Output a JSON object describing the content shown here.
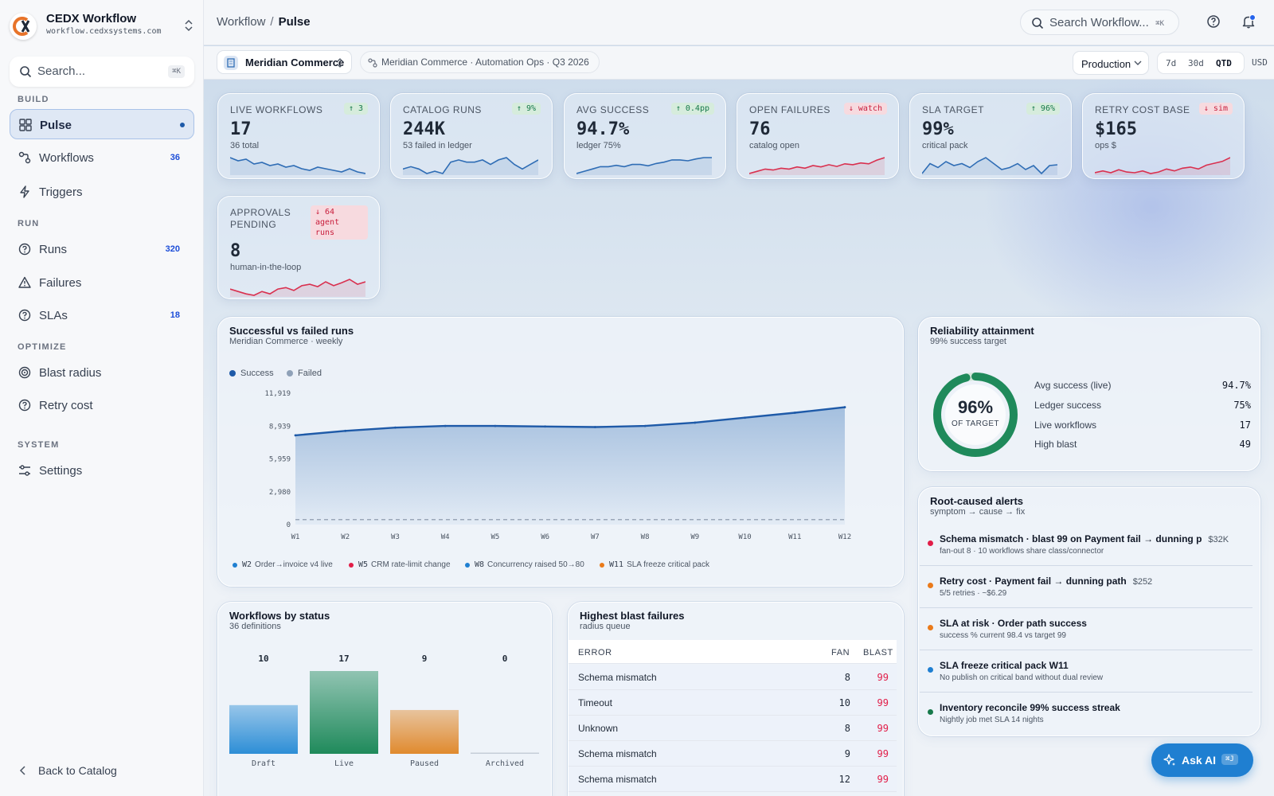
{
  "app": {
    "name": "CEDX Workflow",
    "domain": "workflow.cedxsystems.com"
  },
  "sidebar": {
    "search_placeholder": "Search...",
    "search_kbd": "⌘K",
    "sections": {
      "build": "BUILD",
      "run": "RUN",
      "optimize": "OPTIMIZE",
      "system": "SYSTEM"
    },
    "items": [
      {
        "label": "Pulse",
        "active": true
      },
      {
        "label": "Workflows",
        "count": "36"
      },
      {
        "label": "Triggers"
      },
      {
        "label": "Runs",
        "count": "320"
      },
      {
        "label": "Failures"
      },
      {
        "label": "SLAs",
        "count": "18"
      },
      {
        "label": "Blast radius"
      },
      {
        "label": "Retry cost"
      },
      {
        "label": "Settings"
      }
    ],
    "back": "Back to Catalog"
  },
  "header": {
    "breadcrumb": [
      "Workflow",
      "Pulse"
    ],
    "search_placeholder": "Search Workflow...",
    "search_kbd": "⌘K"
  },
  "context": {
    "tenant": "Meridian Commerce",
    "scope": "Meridian Commerce · Automation Ops · Q3 2026",
    "environment": "Production",
    "ranges": [
      "7d",
      "30d",
      "QTD"
    ],
    "active_range": "QTD",
    "currency": "USD"
  },
  "kpis": [
    {
      "title": "LIVE WORKFLOWS",
      "value": "17",
      "sub": "36 total",
      "badge": "↑ 3",
      "trend": "up",
      "color": "#2f6db5",
      "spark": [
        6,
        5,
        5.5,
        4,
        4.5,
        3.5,
        4,
        3,
        3.5,
        2.5,
        2,
        3,
        2.5,
        2,
        1.5,
        2.5,
        1.5,
        1
      ]
    },
    {
      "title": "CATALOG RUNS",
      "value": "244K",
      "sub": "53 failed in ledger",
      "badge": "↑ 9%",
      "trend": "up",
      "color": "#2f6db5",
      "spark": [
        2,
        2.5,
        2,
        1,
        1.5,
        1,
        3.5,
        4,
        3.5,
        3.5,
        4,
        3,
        4,
        4.5,
        3,
        2,
        3,
        4
      ]
    },
    {
      "title": "AVG SUCCESS",
      "value": "94.7%",
      "sub": "ledger 75%",
      "badge": "↑ 0.4pp",
      "trend": "up",
      "color": "#2f6db5",
      "spark": [
        1,
        1.5,
        2,
        2.5,
        2.5,
        2.8,
        2.5,
        3,
        3,
        2.7,
        3.2,
        3.5,
        4,
        4,
        3.8,
        4.2,
        4.5,
        4.5
      ]
    },
    {
      "title": "OPEN FAILURES",
      "value": "76",
      "sub": "catalog open",
      "badge": "↓ watch",
      "trend": "down",
      "color": "#d9304f",
      "spark": [
        1,
        1.5,
        2,
        1.8,
        2.2,
        2,
        2.5,
        2.2,
        2.8,
        2.5,
        3,
        2.6,
        3.2,
        3,
        3.4,
        3.2,
        4,
        4.6
      ]
    },
    {
      "title": "SLA TARGET",
      "value": "99%",
      "sub": "critical pack",
      "badge": "↑ 96%",
      "trend": "up",
      "color": "#2f6db5",
      "spark": [
        2,
        4.5,
        3.5,
        5,
        4,
        4.5,
        3.5,
        5,
        6,
        4.5,
        3,
        3.5,
        4.5,
        3,
        4,
        2,
        4,
        4.2
      ]
    },
    {
      "title": "RETRY COST BASE",
      "value": "$165",
      "sub": "ops $",
      "badge": "↓ sim",
      "trend": "down",
      "color": "#d9304f",
      "spark": [
        2,
        2.5,
        2,
        2.8,
        2.2,
        2,
        2.5,
        1.8,
        2.2,
        3,
        2.5,
        3.2,
        3.5,
        3,
        4,
        4.5,
        5,
        6
      ]
    },
    {
      "title": "APPROVALS PENDING",
      "value": "8",
      "sub": "human-in-the-loop",
      "badge": "↓ 64 agent runs",
      "trend": "down",
      "color": "#d9304f",
      "spark": [
        2.5,
        2,
        1.5,
        1.2,
        2,
        1.5,
        2.5,
        2.8,
        2.2,
        3.2,
        3.5,
        3,
        4,
        3.2,
        3.8,
        4.5,
        3.5,
        4
      ]
    }
  ],
  "runs_chart": {
    "title": "Successful vs failed runs",
    "subtitle": "Meridian Commerce · weekly",
    "legend": [
      "Success",
      "Failed"
    ],
    "annotations": [
      {
        "key": "W2",
        "text": "Order→invoice v4 live",
        "color": "#1f7fd1"
      },
      {
        "key": "W5",
        "text": "CRM rate-limit change",
        "color": "#e11d48"
      },
      {
        "key": "W8",
        "text": "Concurrency raised 50→80",
        "color": "#1f7fd1"
      },
      {
        "key": "W11",
        "text": "SLA freeze critical pack",
        "color": "#ea7a1a"
      }
    ]
  },
  "reliability": {
    "title": "Reliability attainment",
    "subtitle": "99% success target",
    "percent_label": "96%",
    "gauge_value": 0.96,
    "gauge_caption": "OF TARGET",
    "rows": [
      {
        "label": "Avg success (live)",
        "value": "94.7%"
      },
      {
        "label": "Ledger success",
        "value": "75%"
      },
      {
        "label": "Live workflows",
        "value": "17"
      },
      {
        "label": "High blast",
        "value": "49"
      }
    ]
  },
  "alerts": {
    "title": "Root-caused alerts",
    "subtitle": "symptom → cause → fix",
    "items": [
      {
        "title": "Schema mismatch · blast 99 on Payment fail → dunning p",
        "cost": "$32K",
        "detail": "fan-out 8 · 10 workflows share class/connector",
        "color": "#e11d48"
      },
      {
        "title": "Retry cost · Payment fail → dunning path",
        "cost": "$252",
        "detail": "5/5 retries · ~$6.29",
        "color": "#ea7a1a"
      },
      {
        "title": "SLA at risk · Order path success",
        "cost": "",
        "detail": "success % current 98.4 vs target 99",
        "color": "#ea7a1a"
      },
      {
        "title": "SLA freeze critical pack W11",
        "cost": "",
        "detail": "No publish on critical band without dual review",
        "color": "#1f7fd1"
      },
      {
        "title": "Inventory reconcile 99% success streak",
        "cost": "",
        "detail": "Nightly job met SLA 14 nights",
        "color": "#16794a"
      }
    ]
  },
  "status_chart": {
    "title": "Workflows by status",
    "subtitle": "36 definitions"
  },
  "blast": {
    "title": "Highest blast failures",
    "subtitle": "radius queue",
    "headers": [
      "ERROR",
      "FAN",
      "BLAST"
    ],
    "rows": [
      {
        "error": "Schema mismatch",
        "fan": "8",
        "blast": "99"
      },
      {
        "error": "Timeout",
        "fan": "10",
        "blast": "99"
      },
      {
        "error": "Unknown",
        "fan": "8",
        "blast": "99"
      },
      {
        "error": "Schema mismatch",
        "fan": "9",
        "blast": "99"
      },
      {
        "error": "Schema mismatch",
        "fan": "12",
        "blast": "99"
      }
    ]
  },
  "ask_ai": {
    "label": "Ask AI",
    "kbd": "⌘J"
  },
  "colors": {
    "accent": "#1e5aa8",
    "success": "#16794a",
    "danger": "#e11d48",
    "warning": "#ea7a1a"
  },
  "chart_data": [
    {
      "type": "area",
      "title": "Successful vs failed runs",
      "subtitle": "Meridian Commerce · weekly",
      "x": [
        "W1",
        "W2",
        "W3",
        "W4",
        "W5",
        "W6",
        "W7",
        "W8",
        "W9",
        "W10",
        "W11",
        "W12"
      ],
      "yticks": [
        "0",
        "2,980",
        "5,959",
        "8,939",
        "11,919"
      ],
      "ylim": [
        0,
        11919
      ],
      "series": [
        {
          "name": "Success",
          "values": [
            8100,
            8500,
            8800,
            8950,
            8950,
            8900,
            8850,
            8950,
            9250,
            9700,
            10150,
            10650
          ]
        },
        {
          "name": "Failed",
          "values": [
            450,
            450,
            450,
            450,
            450,
            450,
            450,
            450,
            450,
            450,
            450,
            450
          ]
        }
      ],
      "legend": "top-left",
      "grid": false
    },
    {
      "type": "bar",
      "title": "Workflows by status",
      "categories": [
        "Draft",
        "Live",
        "Paused",
        "Archived"
      ],
      "values": [
        10,
        17,
        9,
        0
      ],
      "value_labels": [
        "10",
        "17",
        "9",
        "0"
      ],
      "colors": [
        "#2d8ed6",
        "#1f8a5b",
        "#e08a2e",
        "#c5cdd8"
      ],
      "ylim": [
        0,
        17
      ]
    }
  ]
}
